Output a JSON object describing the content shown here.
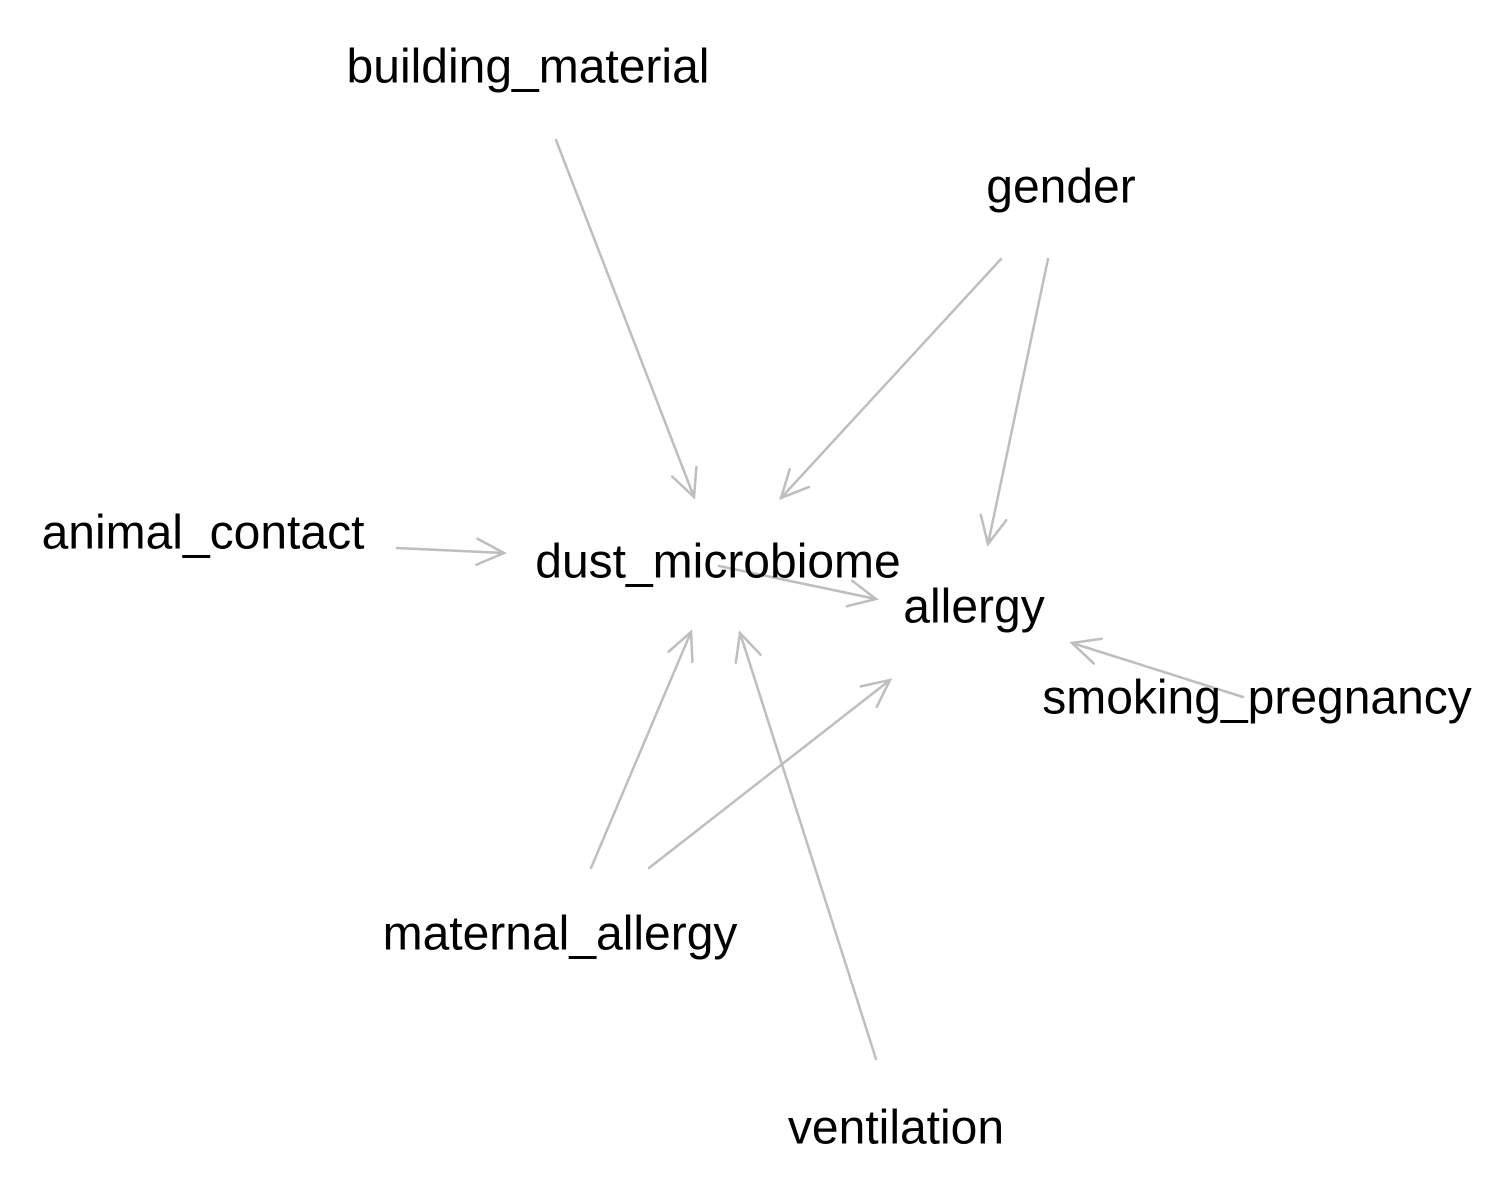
{
  "diagram": {
    "type": "directed-graph",
    "edge_color": "#bebebe",
    "text_color": "#000000",
    "background": "#ffffff",
    "nodes": [
      {
        "id": "building_material",
        "label": "building_material"
      },
      {
        "id": "gender",
        "label": "gender"
      },
      {
        "id": "animal_contact",
        "label": "animal_contact"
      },
      {
        "id": "dust_microbiome",
        "label": "dust_microbiome"
      },
      {
        "id": "allergy",
        "label": "allergy"
      },
      {
        "id": "smoking_pregnancy",
        "label": "smoking_pregnancy"
      },
      {
        "id": "maternal_allergy",
        "label": "maternal_allergy"
      },
      {
        "id": "ventilation",
        "label": "ventilation"
      }
    ],
    "edges": [
      {
        "from": "building_material",
        "to": "dust_microbiome"
      },
      {
        "from": "gender",
        "to": "dust_microbiome"
      },
      {
        "from": "gender",
        "to": "allergy"
      },
      {
        "from": "animal_contact",
        "to": "dust_microbiome"
      },
      {
        "from": "dust_microbiome",
        "to": "allergy"
      },
      {
        "from": "smoking_pregnancy",
        "to": "allergy"
      },
      {
        "from": "maternal_allergy",
        "to": "dust_microbiome"
      },
      {
        "from": "maternal_allergy",
        "to": "allergy"
      },
      {
        "from": "ventilation",
        "to": "dust_microbiome"
      }
    ]
  }
}
